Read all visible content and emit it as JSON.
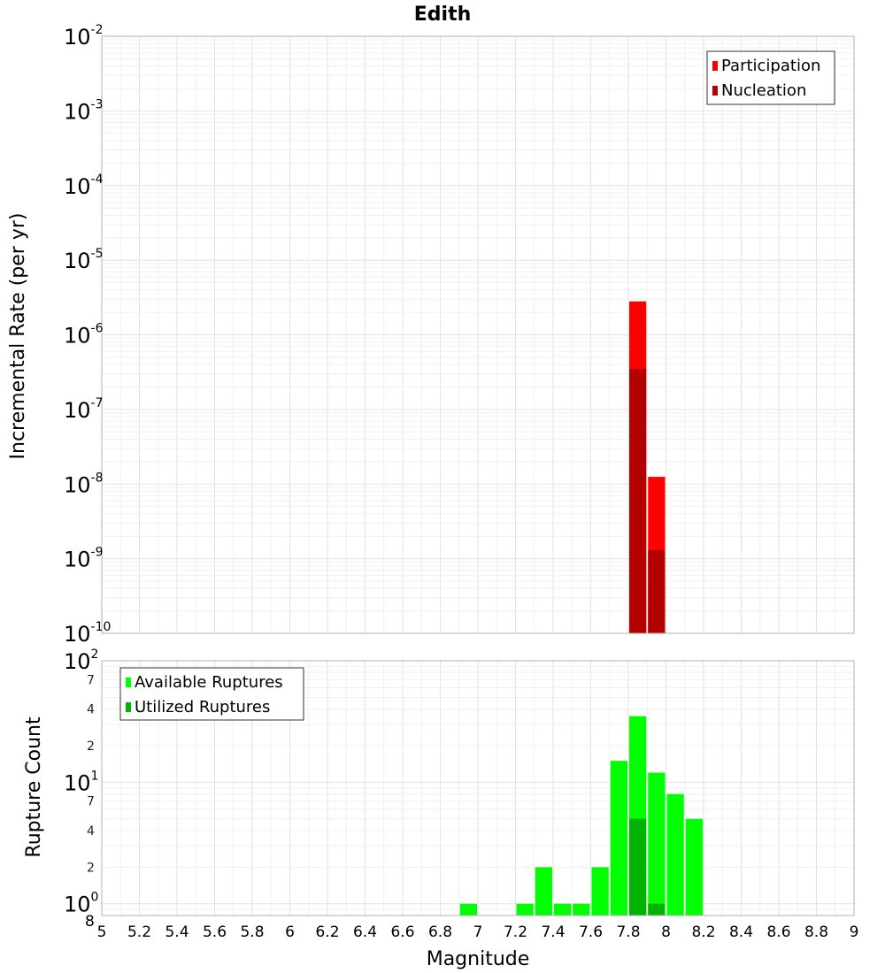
{
  "title": "Edith",
  "chart_data": [
    {
      "type": "bar",
      "name": "rate-panel",
      "title": "Edith",
      "ylabel": "Incremental Rate (per yr)",
      "yscale": "log",
      "ylim": [
        1e-10,
        0.01
      ],
      "xlim": [
        5,
        9
      ],
      "y_ticks": [
        {
          "base": "10",
          "exp": "-10",
          "value": 1e-10
        },
        {
          "base": "10",
          "exp": "-9",
          "value": 1e-09
        },
        {
          "base": "10",
          "exp": "-8",
          "value": 1e-08
        },
        {
          "base": "10",
          "exp": "-7",
          "value": 1e-07
        },
        {
          "base": "10",
          "exp": "-6",
          "value": 1e-06
        },
        {
          "base": "10",
          "exp": "-5",
          "value": 1e-05
        },
        {
          "base": "10",
          "exp": "-4",
          "value": 0.0001
        },
        {
          "base": "10",
          "exp": "-3",
          "value": 0.001
        },
        {
          "base": "10",
          "exp": "-2",
          "value": 0.01
        }
      ],
      "legend": {
        "placement": "top-right",
        "entries": [
          "Participation",
          "Nucleation"
        ]
      },
      "series": [
        {
          "name": "Participation",
          "color": "#ff0000",
          "x": [
            7.85,
            7.95
          ],
          "values": [
            2.8e-06,
            1.25e-08
          ]
        },
        {
          "name": "Nucleation",
          "color": "#b30000",
          "x": [
            7.85,
            7.95
          ],
          "values": [
            3.5e-07,
            1.3e-09
          ]
        }
      ],
      "bar_width": 0.1,
      "grid": true
    },
    {
      "type": "bar",
      "name": "count-panel",
      "xlabel": "Magnitude",
      "ylabel": "Rupture Count",
      "yscale": "log",
      "ylim": [
        0.8,
        100
      ],
      "xlim": [
        5,
        9
      ],
      "y_ticks": [
        {
          "base": "10",
          "exp": "0",
          "value": 1
        },
        {
          "base": "10",
          "exp": "1",
          "value": 10
        },
        {
          "base": "10",
          "exp": "2",
          "value": 100
        }
      ],
      "y_minor_ticks": [
        {
          "label": "8",
          "value": 0.8
        },
        {
          "label": "2",
          "value": 2
        },
        {
          "label": "4",
          "value": 4
        },
        {
          "label": "7",
          "value": 7
        },
        {
          "label": "2",
          "value": 20
        },
        {
          "label": "4",
          "value": 40
        },
        {
          "label": "7",
          "value": 70
        }
      ],
      "x_ticks": [
        "5",
        "5.2",
        "5.4",
        "5.6",
        "5.8",
        "6",
        "6.2",
        "6.4",
        "6.6",
        "6.8",
        "7",
        "7.2",
        "7.4",
        "7.6",
        "7.8",
        "8",
        "8.2",
        "8.4",
        "8.6",
        "8.8",
        "9"
      ],
      "legend": {
        "placement": "top-left",
        "entries": [
          "Available Ruptures",
          "Utilized Ruptures"
        ]
      },
      "series": [
        {
          "name": "Available Ruptures",
          "color": "#00ff00",
          "x": [
            6.95,
            7.25,
            7.35,
            7.45,
            7.55,
            7.65,
            7.75,
            7.85,
            7.95,
            8.05,
            8.15
          ],
          "values": [
            1,
            1,
            2,
            1,
            1,
            2,
            15,
            35,
            12,
            8,
            5
          ]
        },
        {
          "name": "Utilized Ruptures",
          "color": "#00b300",
          "x": [
            7.85,
            7.95
          ],
          "values": [
            5,
            1
          ]
        }
      ],
      "bar_width": 0.1,
      "grid": true
    }
  ]
}
